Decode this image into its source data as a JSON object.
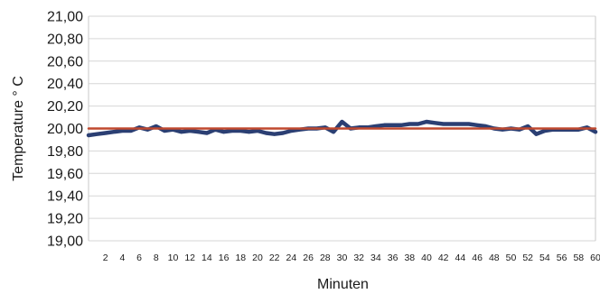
{
  "chart_data": {
    "type": "line",
    "title": "",
    "xlabel": "Minuten",
    "ylabel": "Temperature ° C",
    "ylim": [
      19.0,
      21.0
    ],
    "xlim": [
      0,
      60
    ],
    "y_ticks": [
      "19,00",
      "19,20",
      "19,40",
      "19,60",
      "19,80",
      "20,00",
      "20,20",
      "20,40",
      "20,60",
      "20,80",
      "21,00"
    ],
    "x_ticks": [
      "2",
      "4",
      "6",
      "8",
      "10",
      "12",
      "14",
      "16",
      "18",
      "20",
      "22",
      "24",
      "26",
      "28",
      "30",
      "32",
      "34",
      "36",
      "38",
      "40",
      "42",
      "44",
      "46",
      "48",
      "50",
      "52",
      "54",
      "56",
      "58",
      "60"
    ],
    "grid": true,
    "legend": "none",
    "series": [
      {
        "color": "#2b3f73",
        "x": [
          0,
          1,
          2,
          3,
          4,
          5,
          6,
          7,
          8,
          9,
          10,
          11,
          12,
          13,
          14,
          15,
          16,
          17,
          18,
          19,
          20,
          21,
          22,
          23,
          24,
          25,
          26,
          27,
          28,
          29,
          30,
          31,
          32,
          33,
          34,
          35,
          36,
          37,
          38,
          39,
          40,
          41,
          42,
          43,
          44,
          45,
          46,
          47,
          48,
          49,
          50,
          51,
          52,
          53,
          54,
          55,
          56,
          57,
          58,
          59,
          60
        ],
        "y": [
          19.94,
          19.95,
          19.96,
          19.97,
          19.98,
          19.98,
          20.01,
          19.99,
          20.02,
          19.98,
          19.99,
          19.97,
          19.98,
          19.97,
          19.96,
          19.99,
          19.97,
          19.98,
          19.98,
          19.97,
          19.98,
          19.96,
          19.95,
          19.96,
          19.98,
          19.99,
          20.0,
          20.0,
          20.01,
          19.97,
          20.06,
          20.0,
          20.01,
          20.01,
          20.02,
          20.03,
          20.03,
          20.03,
          20.04,
          20.04,
          20.06,
          20.05,
          20.04,
          20.04,
          20.04,
          20.04,
          20.03,
          20.02,
          20.0,
          19.99,
          20.0,
          19.99,
          20.02,
          19.95,
          19.98,
          19.99,
          19.99,
          19.99,
          19.99,
          20.01,
          19.97
        ]
      },
      {
        "color": "#c0492f",
        "x": [
          0,
          60
        ],
        "y": [
          20.0,
          20.0
        ]
      }
    ]
  }
}
